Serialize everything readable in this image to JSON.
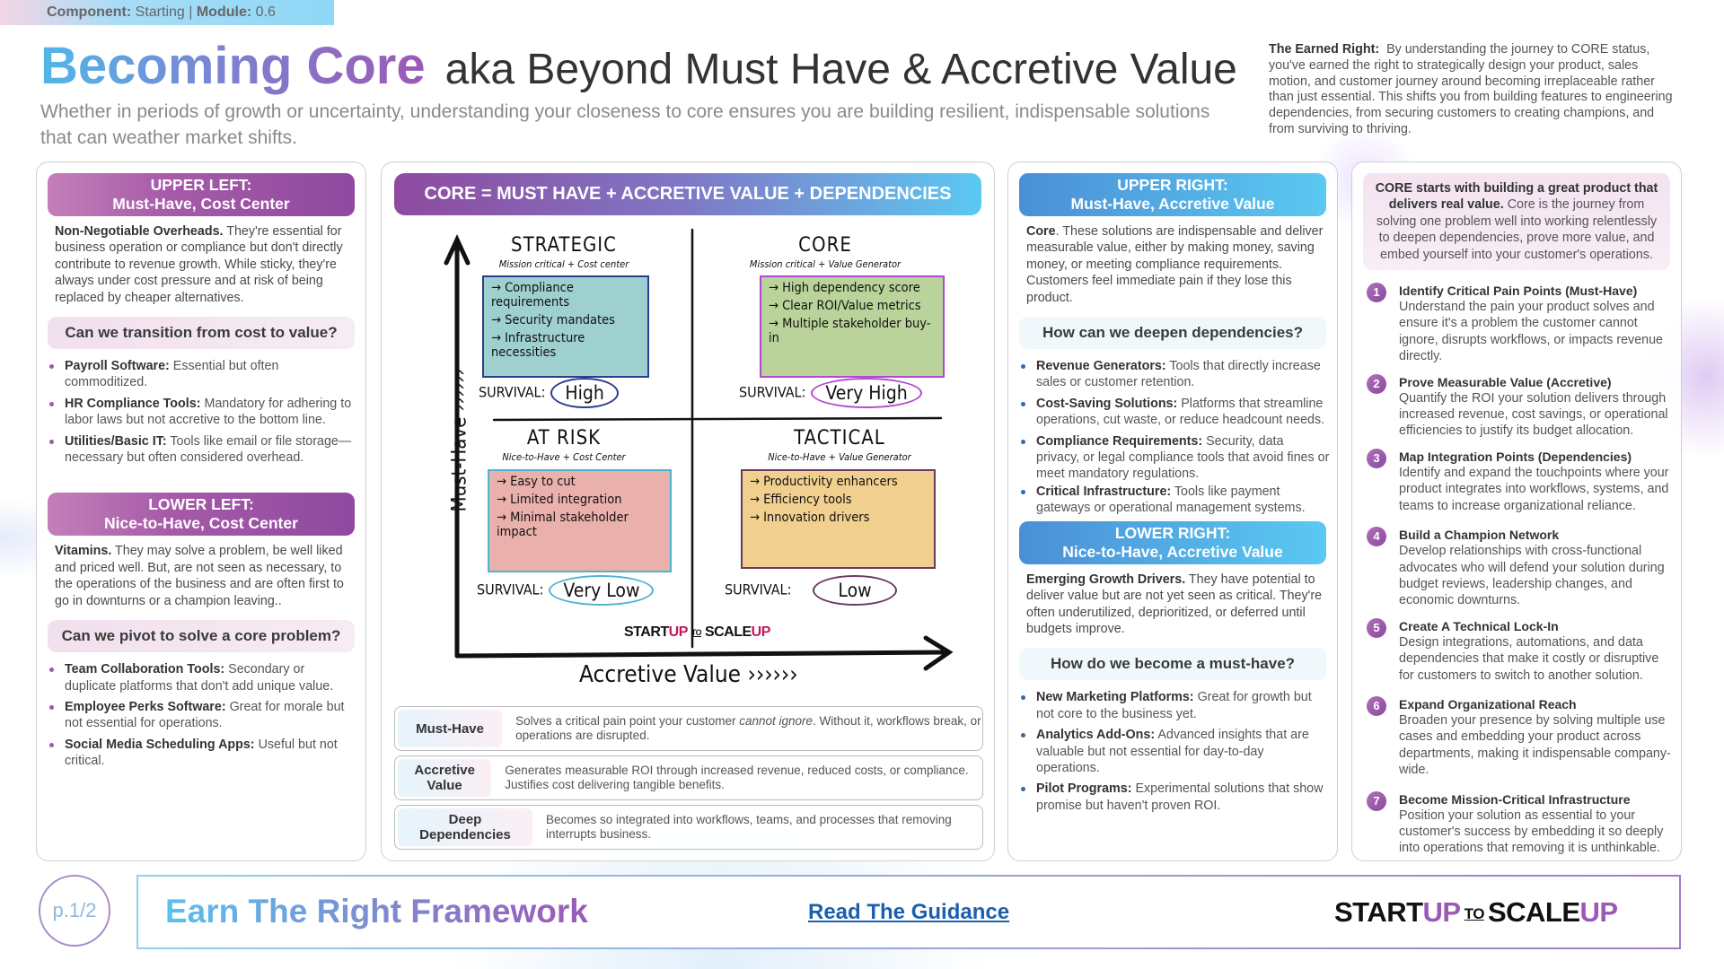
{
  "tag": {
    "component_label": "Component:",
    "component": "Starting",
    "module_label": "Module:",
    "module": "0.6"
  },
  "header": {
    "title": "Becoming Core",
    "subtitle": "aka Beyond Must Have & Accretive Value",
    "description": "Whether in periods of growth or uncertainty, understanding your closeness to core ensures you are building resilient, indispensable solutions that can weather market shifts.",
    "earned_label": "The Earned Right:",
    "earned_text": "By understanding the journey to CORE status, you've earned the right to strategically design your product, sales motion, and customer journey around becoming irreplaceable rather than just essential. This shifts you from building features to engineering dependencies, from securing customers to creating champions, and from surviving to thriving."
  },
  "left": {
    "upper": {
      "header1": "UPPER LEFT:",
      "header2": "Must-Have, Cost Center",
      "lead": "Non-Negotiable Overheads.",
      "text": "They're essential for business operation or compliance but don't directly contribute to revenue growth. While sticky, they're always under cost pressure and at risk of being replaced by cheaper alternatives.",
      "question": "Can we transition from cost to value?",
      "bullets": [
        {
          "b": "Payroll Software:",
          "t": "Essential but often commoditized."
        },
        {
          "b": "HR Compliance Tools:",
          "t": "Mandatory for adhering to labor laws but not accretive to the bottom line."
        },
        {
          "b": "Utilities/Basic IT:",
          "t": "Tools like email or file storage—necessary but often considered overhead."
        }
      ]
    },
    "lower": {
      "header1": "LOWER LEFT:",
      "header2": "Nice-to-Have, Cost Center",
      "lead": "Vitamins.",
      "text": "They may solve a problem, be well liked and priced well. But, are not seen as necessary, to the operations of the business and are often first to go in downturns or a champion leaving..",
      "question": "Can we pivot to solve a core problem?",
      "bullets": [
        {
          "b": "Team Collaboration Tools:",
          "t": "Secondary or duplicate platforms that don't add unique value."
        },
        {
          "b": "Employee Perks Software:",
          "t": "Great for morale but not essential for operations."
        },
        {
          "b": "Social Media Scheduling Apps:",
          "t": "Useful but not critical."
        }
      ]
    }
  },
  "center": {
    "header": "CORE = MUST HAVE + ACCRETIVE VALUE + DEPENDENCIES",
    "y_axis": "Must-Have ››››››",
    "x_axis": "Accretive Value ››››››",
    "survival_label": "SURVIVAL:",
    "quadrants": {
      "strategic": {
        "title": "STRATEGIC",
        "subtitle": "Mission critical + Cost center",
        "items": [
          "→ Compliance requirements",
          "→ Security mandates",
          "→ Infrastructure necessities"
        ],
        "survival": "High",
        "color": "#9fd0d0",
        "border": "#2a3d8f"
      },
      "core": {
        "title": "CORE",
        "subtitle": "Mission critical + Value Generator",
        "items": [
          "→ High dependency score",
          "→ Clear ROI/Value metrics",
          "→ Multiple stakeholder buy-in"
        ],
        "survival": "Very High",
        "color": "#b9d39a",
        "border": "#b04ad0"
      },
      "at_risk": {
        "title": "AT RISK",
        "subtitle": "Nice-to-Have + Cost Center",
        "items": [
          "→ Easy to cut",
          "→ Limited integration",
          "→ Minimal stakeholder impact"
        ],
        "survival": "Very Low",
        "color": "#eab0ab",
        "border": "#4fb3cf"
      },
      "tactical": {
        "title": "TACTICAL",
        "subtitle": "Nice-to-Have + Value Generator",
        "items": [
          "→ Productivity enhancers",
          "→ Efficiency tools",
          "→ Innovation drivers"
        ],
        "survival": "Low",
        "color": "#f1cf8f",
        "border": "#6a3a5e"
      }
    },
    "logo": {
      "a": "START",
      "b": "UP",
      "to": "TO",
      "c": "SCALE",
      "d": "UP"
    },
    "definitions": [
      {
        "term": "Must-Have",
        "pre": "Solves a critical pain point your customer ",
        "em": "cannot ignore",
        "post": ". Without it, workflows break, or operations are disrupted."
      },
      {
        "term": "Accretive Value",
        "pre": "Generates measurable ROI through increased revenue, reduced costs, or compliance. Justifies cost delivering tangible benefits.",
        "em": "",
        "post": ""
      },
      {
        "term": "Deep Dependencies",
        "pre": "Becomes so integrated into workflows, teams, and processes that removing interrupts business.",
        "em": "",
        "post": ""
      }
    ]
  },
  "right": {
    "upper": {
      "header1": "UPPER RIGHT:",
      "header2": "Must-Have, Accretive Value",
      "lead": "Core",
      "text": ". These solutions are indispensable and deliver measurable value, either by making money, saving money, or meeting compliance requirements. Customers feel immediate pain if they lose this product.",
      "question": "How can we deepen dependencies?",
      "bullets": [
        {
          "b": "Revenue Generators:",
          "t": "Tools that directly increase sales or customer retention."
        },
        {
          "b": "Cost-Saving Solutions:",
          "t": "Platforms that streamline operations, cut waste, or reduce headcount needs."
        },
        {
          "b": "Compliance Requirements:",
          "t": "Security, data privacy, or legal compliance tools that avoid fines or meet mandatory regulations."
        },
        {
          "b": "Critical Infrastructure:",
          "t": "Tools like payment gateways or operational management systems."
        }
      ]
    },
    "lower": {
      "header1": "LOWER RIGHT:",
      "header2": "Nice-to-Have, Accretive Value",
      "lead": "Emerging Growth Drivers.",
      "text": "They have potential to deliver value but are not yet seen as critical. They're often underutilized, deprioritized, or deferred until budgets improve.",
      "question": "How do we become a must-have?",
      "bullets": [
        {
          "b": "New Marketing Platforms:",
          "t": "Great for growth but not core to the business yet."
        },
        {
          "b": "Analytics Add-Ons:",
          "t": "Advanced insights that are valuable but not essential for day-to-day operations."
        },
        {
          "b": "Pilot Programs:",
          "t": "Experimental solutions that show promise but haven't proven ROI."
        }
      ]
    }
  },
  "journey": {
    "intro_bold": "CORE starts with building a great product that delivers real value.",
    "intro": "Core is the journey from solving one problem well into working relentlessly to deepen dependencies, prove more value, and embed yourself into your customer's operations.",
    "steps": [
      {
        "n": "1",
        "title": "Identify Critical Pain Points (Must-Have)",
        "text": "Understand the pain your product solves and ensure it's a problem the customer cannot ignore, disrupts workflows, or impacts revenue directly."
      },
      {
        "n": "2",
        "title": "Prove Measurable Value (Accretive)",
        "text": "Quantify the ROI your solution delivers through increased revenue, cost savings, or operational efficiencies to justify its budget allocation."
      },
      {
        "n": "3",
        "title": "Map Integration Points (Dependencies)",
        "text": "Identify and expand the touchpoints where your product integrates into workflows, systems, and teams to increase organizational reliance."
      },
      {
        "n": "4",
        "title": "Build a Champion Network",
        "text": "Develop relationships with cross-functional advocates who will defend your solution during budget reviews, leadership changes, and economic downturns."
      },
      {
        "n": "5",
        "title": "Create A Technical Lock-In",
        "text": "Design integrations, automations, and data dependencies that make it costly or disruptive for customers to switch to another solution."
      },
      {
        "n": "6",
        "title": "Expand Organizational Reach",
        "text": "Broaden your presence by solving multiple use cases and embedding your product across departments, making it indispensable company-wide."
      },
      {
        "n": "7",
        "title": "Become Mission-Critical Infrastructure",
        "text": "Position your solution as essential to your customer's success by embedding it so deeply into operations that removing it is unthinkable."
      }
    ]
  },
  "footer": {
    "page": "p.1/2",
    "title": "Earn The Right Framework",
    "link": "Read The Guidance"
  }
}
